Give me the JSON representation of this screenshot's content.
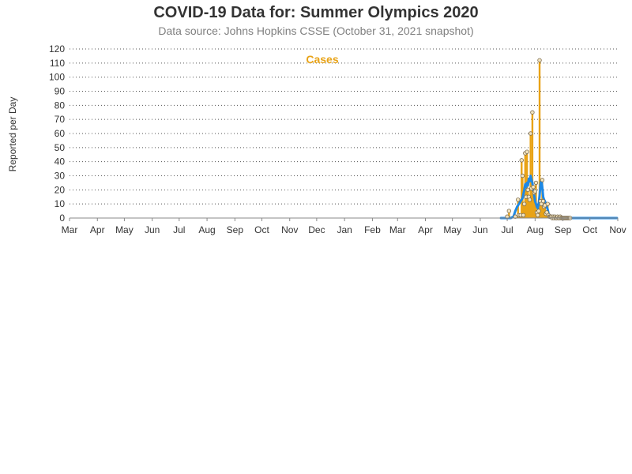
{
  "chart_data": {
    "type": "bar",
    "title": "COVID-19 Data for: Summer Olympics 2020",
    "subtitle": "Data source: Johns Hopkins CSSE (October 31, 2021 snapshot)",
    "ylabel": "Reported per Day",
    "ylim": [
      0,
      120
    ],
    "yticks": [
      0,
      10,
      20,
      30,
      40,
      50,
      60,
      70,
      80,
      90,
      100,
      110,
      120
    ],
    "xticks": [
      "Mar",
      "Apr",
      "May",
      "Jun",
      "Jul",
      "Aug",
      "Sep",
      "Oct",
      "Nov",
      "Dec",
      "Jan",
      "Feb",
      "Mar",
      "Apr",
      "May",
      "Jun",
      "Jul",
      "Aug",
      "Sep",
      "Oct",
      "Nov"
    ],
    "grid": "horizontal-dotted",
    "series": [
      {
        "name": "Cases",
        "kind": "daily-bars",
        "color": "#e8a317",
        "x": [
          "2021-07-01",
          "2021-07-03",
          "2021-07-10",
          "2021-07-13",
          "2021-07-14",
          "2021-07-16",
          "2021-07-17",
          "2021-07-18",
          "2021-07-19",
          "2021-07-20",
          "2021-07-21",
          "2021-07-22",
          "2021-07-23",
          "2021-07-24",
          "2021-07-25",
          "2021-07-26",
          "2021-07-27",
          "2021-07-28",
          "2021-07-29",
          "2021-07-30",
          "2021-07-31",
          "2021-08-01",
          "2021-08-02",
          "2021-08-03",
          "2021-08-04",
          "2021-08-05",
          "2021-08-06",
          "2021-08-07",
          "2021-08-08",
          "2021-08-09",
          "2021-08-10",
          "2021-08-11",
          "2021-08-12",
          "2021-08-13",
          "2021-08-14",
          "2021-08-15",
          "2021-08-16",
          "2021-08-17",
          "2021-08-18",
          "2021-08-19",
          "2021-08-20",
          "2021-08-21",
          "2021-08-22",
          "2021-08-23",
          "2021-08-24",
          "2021-08-25",
          "2021-08-26",
          "2021-08-27",
          "2021-08-28",
          "2021-08-29",
          "2021-08-30",
          "2021-08-31",
          "2021-09-01",
          "2021-09-02",
          "2021-09-03",
          "2021-09-04",
          "2021-09-05",
          "2021-09-06",
          "2021-09-07",
          "2021-09-08",
          "2021-09-09"
        ],
        "y": [
          1,
          5,
          1,
          13,
          2,
          2,
          41,
          30,
          2,
          10,
          46,
          15,
          47,
          20,
          15,
          13,
          60,
          21,
          75,
          22,
          18,
          19,
          25,
          4,
          2,
          5,
          112,
          12,
          10,
          27,
          12,
          8,
          9,
          3,
          4,
          10,
          2,
          1,
          1,
          1,
          0,
          1,
          0,
          1,
          0,
          0,
          1,
          0,
          0,
          1,
          0,
          0,
          0,
          0,
          0,
          0,
          0,
          0,
          0,
          0,
          0
        ]
      },
      {
        "name": "",
        "kind": "moving-average",
        "color": "#1e88e5",
        "x": [
          "2021-06-24",
          "2021-07-05",
          "2021-07-08",
          "2021-07-10",
          "2021-07-12",
          "2021-07-14",
          "2021-07-16",
          "2021-07-18",
          "2021-07-20",
          "2021-07-21",
          "2021-07-22",
          "2021-07-23",
          "2021-07-24",
          "2021-07-25",
          "2021-07-26",
          "2021-07-27",
          "2021-07-28",
          "2021-07-29",
          "2021-07-30",
          "2021-07-31",
          "2021-08-01",
          "2021-08-02",
          "2021-08-03",
          "2021-08-04",
          "2021-08-05",
          "2021-08-06",
          "2021-08-07",
          "2021-08-08",
          "2021-08-09",
          "2021-08-10",
          "2021-08-11",
          "2021-08-12",
          "2021-08-13",
          "2021-08-14",
          "2021-08-15",
          "2021-08-16",
          "2021-08-17",
          "2021-08-18",
          "2021-08-20",
          "2021-08-23",
          "2021-10-31"
        ],
        "y": [
          0,
          0,
          1,
          5,
          8,
          10,
          12,
          14,
          20,
          24,
          22,
          25,
          23,
          28,
          26,
          30,
          27,
          25,
          20,
          16,
          12,
          10,
          8,
          7,
          10,
          16,
          24,
          27,
          22,
          15,
          13,
          12,
          10,
          8,
          6,
          3,
          1,
          0.5,
          0.3,
          0,
          0
        ]
      }
    ],
    "markers": {
      "color": "#e8a317",
      "fill": "#f3e5c0",
      "kind": "circle-on-daily-values"
    }
  }
}
